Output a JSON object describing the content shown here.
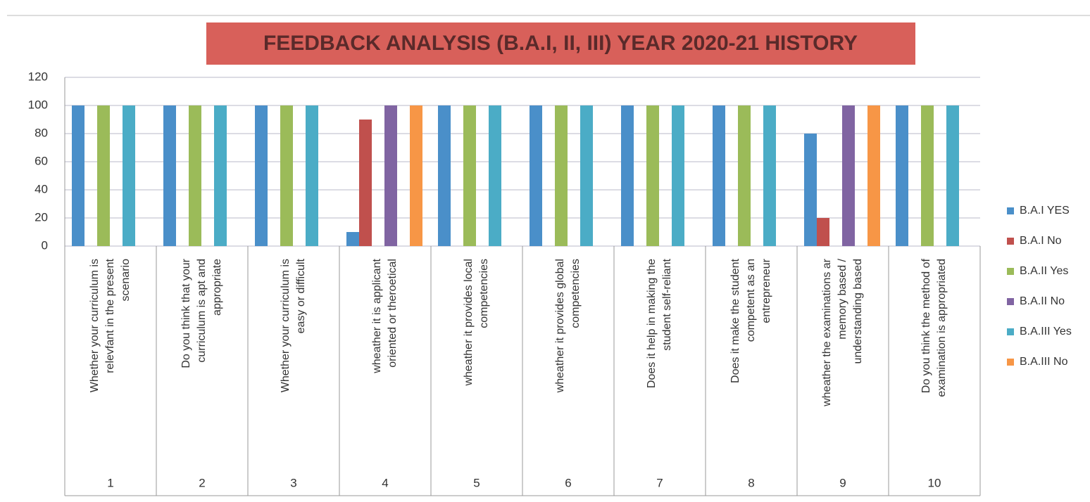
{
  "chart_data": {
    "type": "bar",
    "title": "FEEDBACK ANALYSIS   (B.A.I, II, III) YEAR 2020-21 HISTORY",
    "categories": [
      [
        "Whether your curriculum is",
        "relevfant in the present",
        "scenario"
      ],
      [
        "Do you think that your",
        "curriculum is apt and",
        "appropriate"
      ],
      [
        "Whether your curriculum is",
        "easy or difficult"
      ],
      [
        "wheather it is applicant",
        "oriented or theroetical"
      ],
      [
        "wheather it provides local",
        "competencies"
      ],
      [
        "wheather it provides global",
        "competencies"
      ],
      [
        "Does it help in making the",
        "student self-reliant"
      ],
      [
        "Does it make the student",
        "competent as an",
        "entrepreneur"
      ],
      [
        "wheather the examinations ar",
        "memory based /",
        "understanding based"
      ],
      [
        "Do you think the method of",
        "examination is appropriated"
      ]
    ],
    "category_numbers": [
      "1",
      "2",
      "3",
      "4",
      "5",
      "6",
      "7",
      "8",
      "9",
      "10"
    ],
    "series": [
      {
        "name": "B.A.I YES",
        "color": "#4a8fc9",
        "values": [
          100,
          100,
          100,
          10,
          100,
          100,
          100,
          100,
          80,
          100
        ]
      },
      {
        "name": "B.A.I No",
        "color": "#c0504d",
        "values": [
          0,
          0,
          0,
          90,
          0,
          0,
          0,
          0,
          20,
          0
        ]
      },
      {
        "name": "B.A.II Yes",
        "color": "#9bbb59",
        "values": [
          100,
          100,
          100,
          0,
          100,
          100,
          100,
          100,
          0,
          100
        ]
      },
      {
        "name": "B.A.II No",
        "color": "#8064a2",
        "values": [
          0,
          0,
          0,
          100,
          0,
          0,
          0,
          0,
          100,
          0
        ]
      },
      {
        "name": "B.A.III Yes",
        "color": "#4bacc6",
        "values": [
          100,
          100,
          100,
          0,
          100,
          100,
          100,
          100,
          0,
          100
        ]
      },
      {
        "name": "B.A.III No",
        "color": "#f79646",
        "values": [
          0,
          0,
          0,
          100,
          0,
          0,
          0,
          0,
          100,
          0
        ]
      }
    ],
    "ylim": [
      0,
      120
    ],
    "yticks": [
      0,
      20,
      40,
      60,
      80,
      100,
      120
    ],
    "grid": true,
    "legend": "right"
  }
}
